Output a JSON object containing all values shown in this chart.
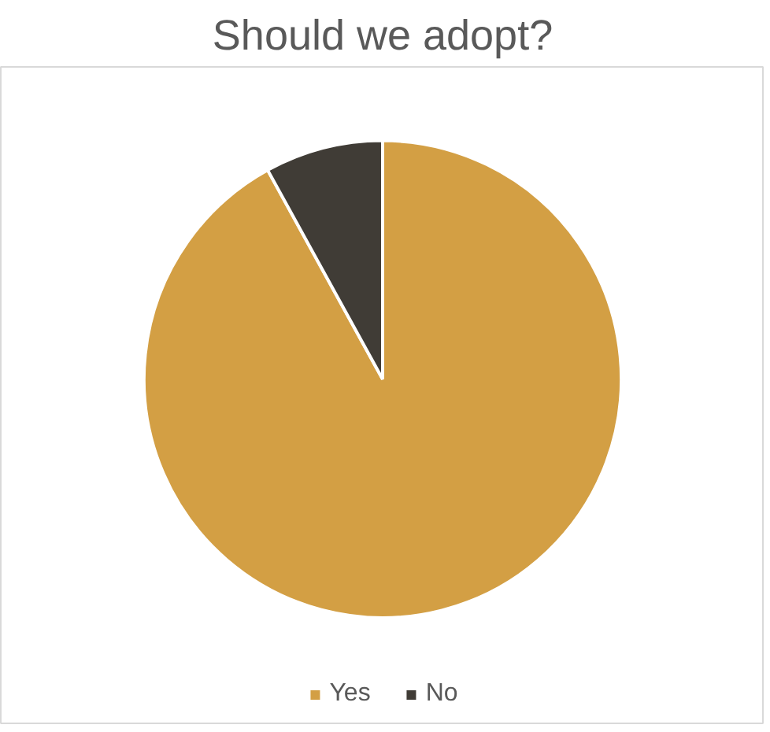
{
  "chart_data": {
    "type": "pie",
    "title": "Should we adopt?",
    "categories": [
      "Yes",
      "No"
    ],
    "values": [
      92,
      8
    ],
    "colors": [
      "#d39f44",
      "#403c36"
    ],
    "legend": "bottom"
  }
}
